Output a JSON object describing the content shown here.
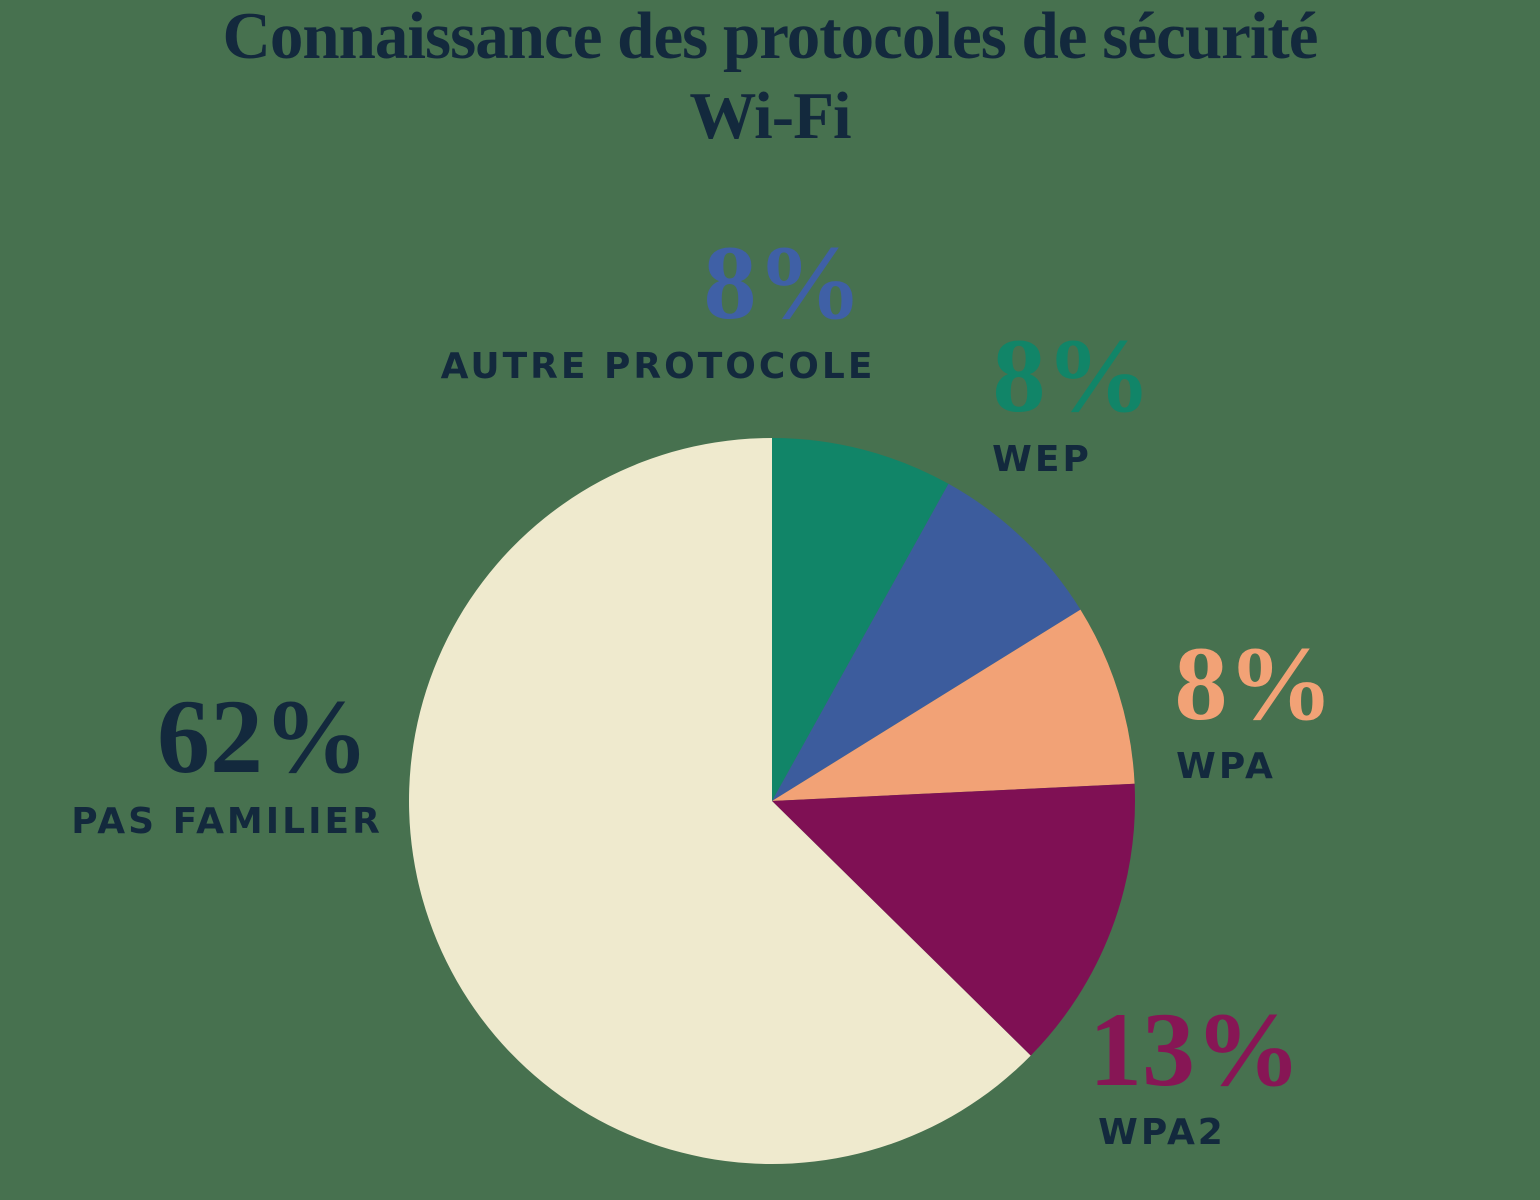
{
  "title": {
    "lines": [
      "Connaissance des protocoles de sécurité",
      "Wi-Fi"
    ]
  },
  "colors": {
    "background": "#47714F",
    "navy_text": "#13293D",
    "teal": "#118568",
    "blue": "#3C5C9D",
    "peach": "#F2A276",
    "magenta": "#7F1054",
    "cream": "#EFEACE"
  },
  "chart_data": {
    "type": "pie",
    "title": "Connaissance des protocoles de sécurité Wi-Fi",
    "unit": "%",
    "start_angle_deg_from_top": 0,
    "direction": "clockwise",
    "legend_position": "around-slices",
    "slices": [
      {
        "label": "WEP",
        "value_pct": 8,
        "display": "8%",
        "color": "#118568",
        "value_color": "#118568"
      },
      {
        "label": "AUTRE PROTOCOLE",
        "value_pct": 8,
        "display": "8%",
        "color": "#3C5C9D",
        "value_color": "#3F60A6"
      },
      {
        "label": "WPA",
        "value_pct": 8,
        "display": "8%",
        "color": "#F2A276",
        "value_color": "#F2A276"
      },
      {
        "label": "WPA2",
        "value_pct": 13,
        "display": "13%",
        "color": "#7F1054",
        "value_color": "#871655"
      },
      {
        "label": "PAS FAMILIER",
        "value_pct": 62,
        "display": "62%",
        "color": "#EFEACE",
        "value_color": "#13293D"
      }
    ]
  },
  "pie_geometry_note": "slices drawn clockwise from 12 o'clock in listed order"
}
